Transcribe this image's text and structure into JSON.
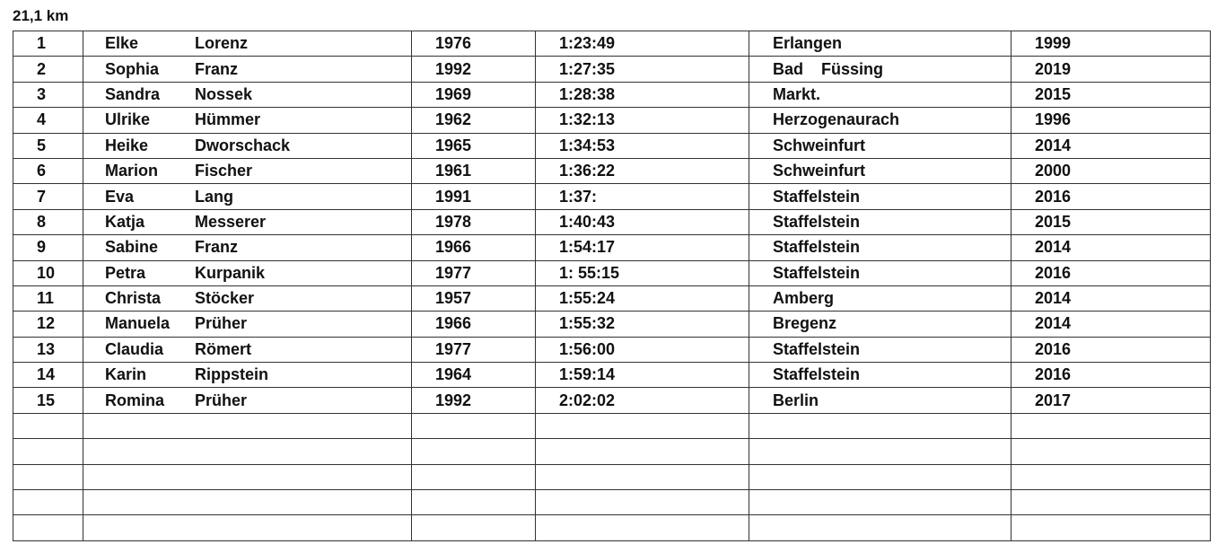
{
  "title": "21,1 km",
  "table": {
    "rows": [
      [
        "1",
        "Elke",
        "Lorenz",
        "1976",
        "1:23:49",
        "Erlangen",
        "1999"
      ],
      [
        "2",
        "Sophia",
        "Franz",
        "1992",
        "1:27:35",
        "Bad    Füssing",
        "2019"
      ],
      [
        "3",
        "Sandra",
        "Nossek",
        "1969",
        "1:28:38",
        "Markt.",
        "2015"
      ],
      [
        "4",
        "Ulrike",
        "Hümmer",
        "1962",
        "1:32:13",
        "Herzogenaurach",
        "1996"
      ],
      [
        "5",
        "Heike",
        "Dworschack",
        "1965",
        "1:34:53",
        "Schweinfurt",
        "2014"
      ],
      [
        "6",
        "Marion",
        "Fischer",
        "1961",
        "1:36:22",
        "Schweinfurt",
        "2000"
      ],
      [
        "7",
        "Eva",
        "Lang",
        "1991",
        "1:37:",
        "Staffelstein",
        "2016"
      ],
      [
        "8",
        "Katja",
        "Messerer",
        "1978",
        "1:40:43",
        "Staffelstein",
        "2015"
      ],
      [
        "9",
        "Sabine",
        "Franz",
        "1966",
        "1:54:17",
        "Staffelstein",
        "2014"
      ],
      [
        "10",
        "Petra",
        "Kurpanik",
        "1977",
        "1: 55:15",
        "Staffelstein",
        "2016"
      ],
      [
        "11",
        "Christa",
        "Stöcker",
        "1957",
        "1:55:24",
        "Amberg",
        "2014"
      ],
      [
        "12",
        "Manuela",
        "Prüher",
        "1966",
        "1:55:32",
        "Bregenz",
        "2014"
      ],
      [
        "13",
        "Claudia",
        "Römert",
        "1977",
        "1:56:00",
        "Staffelstein",
        "2016"
      ],
      [
        "14",
        "Karin",
        "Rippstein",
        "1964",
        "1:59:14",
        "Staffelstein",
        "2016"
      ],
      [
        "15",
        "Romina",
        "Prüher",
        "1992",
        "2:02:02",
        "Berlin",
        "2017"
      ]
    ]
  }
}
